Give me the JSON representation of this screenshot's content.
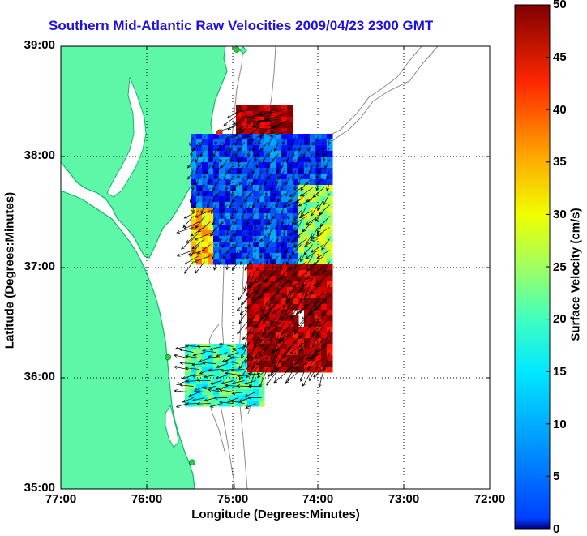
{
  "title": "Southern Mid-Atlantic Raw Velocities 2009/04/23 2300 GMT",
  "xlabel": "Longitude (Degrees:Minutes)",
  "ylabel": "Latitude (Degrees:Minutes)",
  "colorbar": {
    "label": "Surface Velocity (cm/s)",
    "ticks": [
      "0",
      "5",
      "10",
      "15",
      "20",
      "25",
      "30",
      "35",
      "40",
      "45",
      "50"
    ],
    "range": [
      0,
      50
    ],
    "colormap": "jet"
  },
  "axes": {
    "x_ticks": [
      "77:00",
      "76:00",
      "75:00",
      "74:00",
      "73:00",
      "72:00"
    ],
    "y_ticks": [
      "39:00",
      "38:00",
      "37:00",
      "36:00",
      "35:00"
    ],
    "x_range": [
      -77,
      -72
    ],
    "y_range": [
      35,
      39
    ],
    "grid": "dotted"
  },
  "colors": {
    "land": "#5ef7a8",
    "land_edge": "#11b866",
    "bathymetry": "#8a8a8a",
    "title": "#1f10e0",
    "arrows": "#000000",
    "station_red": "#ff2020",
    "station_green": "#20d040"
  },
  "stations": [
    {
      "lon": -74.95,
      "lat": 38.97,
      "color": "green"
    },
    {
      "lon": -75.15,
      "lat": 38.22,
      "color": "red"
    },
    {
      "lon": -75.75,
      "lat": 36.19,
      "color": "green"
    },
    {
      "lon": -75.47,
      "lat": 35.24,
      "color": "green"
    }
  ],
  "velocity_regions": [
    {
      "name": "north",
      "speed": 48,
      "direction_deg": 250
    },
    {
      "name": "central",
      "speed": 10,
      "direction_deg": 200
    },
    {
      "name": "west-edge",
      "speed": 34,
      "direction_deg": 235
    },
    {
      "name": "east-edge",
      "speed": 27,
      "direction_deg": 225
    },
    {
      "name": "south-channel",
      "speed": 47,
      "direction_deg": 215
    },
    {
      "name": "hatteras",
      "speed": 22,
      "direction_deg": 265
    }
  ]
}
